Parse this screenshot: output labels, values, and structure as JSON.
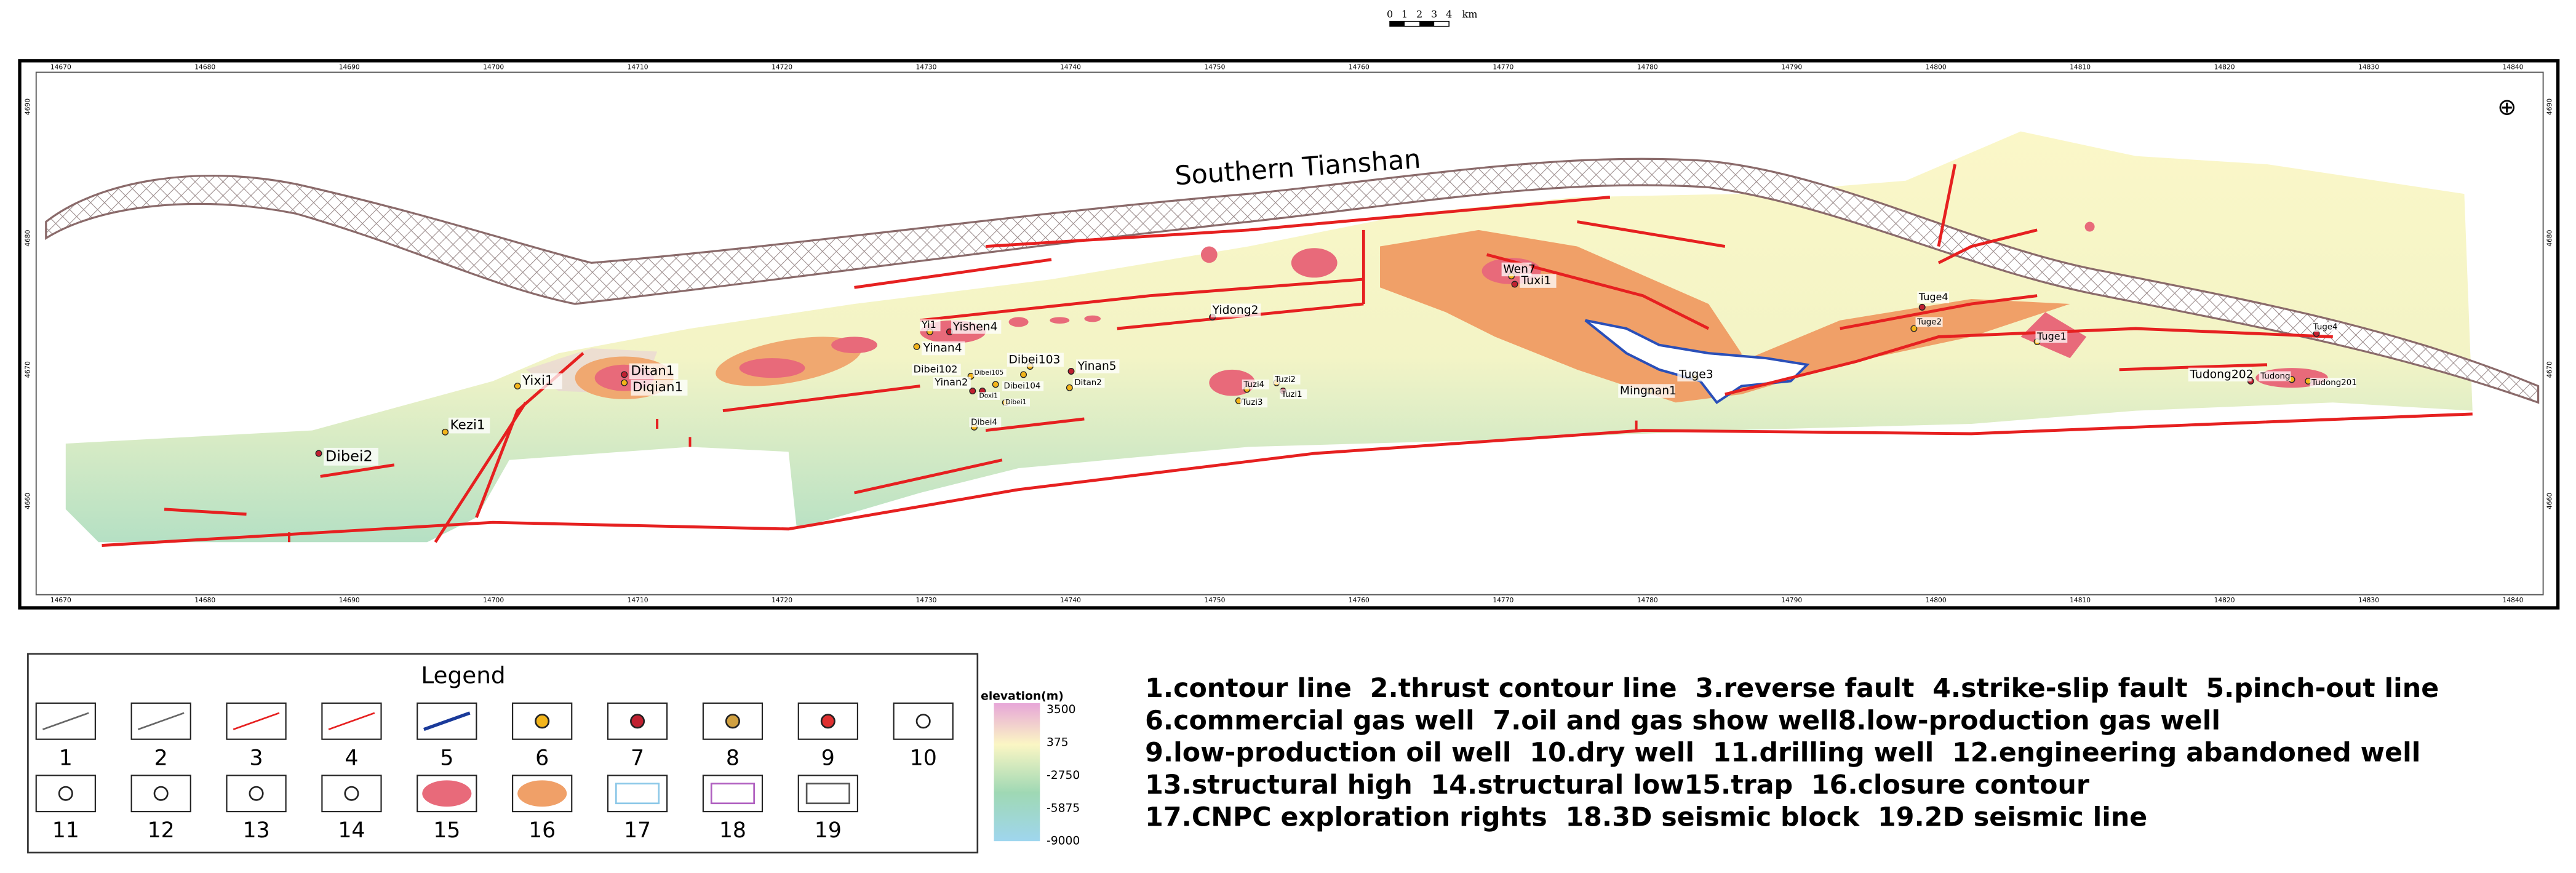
{
  "scale_bar": {
    "labels": [
      "0",
      "1",
      "2",
      "3",
      "4"
    ],
    "unit": "km"
  },
  "map": {
    "title": "Southern Tianshan",
    "x_ticks": [
      "14670",
      "14680",
      "14690",
      "14700",
      "14710",
      "14720",
      "14730",
      "14740",
      "14750",
      "14760",
      "14770",
      "14780",
      "14790",
      "14800",
      "14810",
      "14820",
      "14830",
      "14840"
    ],
    "y_ticks": [
      "4690",
      "4680",
      "4670",
      "4660"
    ],
    "wells": [
      "Dibei2",
      "Kezi1",
      "Yixi1",
      "Ditan1",
      "Diqian1",
      "Yi1",
      "Yishen4",
      "Yinan4",
      "Dibei103",
      "Yinan5",
      "Dibei102",
      "Dibei105",
      "Yinan2",
      "Dibei104",
      "Ditan2",
      "Doxi1",
      "Dibei1",
      "Dibei4",
      "Yidong2",
      "Tuzi4",
      "Tuzi2",
      "Tuzi1",
      "Tuzi3",
      "Wen7",
      "Tuxi1",
      "Tuge3",
      "Mingnan1",
      "Tuge4",
      "Tuge2",
      "Tuge1",
      "Tudong202",
      "Tudong",
      "Tudong201",
      "Tuge4"
    ]
  },
  "legend": {
    "title": "Legend",
    "numbers": [
      "1",
      "2",
      "3",
      "4",
      "5",
      "6",
      "7",
      "8",
      "9",
      "10",
      "11",
      "12",
      "13",
      "14",
      "15",
      "16",
      "17",
      "18",
      "19"
    ],
    "elevation": {
      "label": "elevation(m)",
      "ticks": [
        "3500",
        "375",
        "-2750",
        "-5875",
        "-9000"
      ]
    },
    "descriptions": [
      "1.contour line  2.thrust contour line  3.reverse fault  4.strike-slip fault  5.pinch-out line",
      "6.commercial gas well  7.oil and gas show well8.low-production gas well",
      "9.low-production oil well  10.dry well  11.drilling well  12.engineering abandoned well",
      "13.structural high  14.structural low15.trap  16.closure contour",
      "17.CNPC exploration rights  18.3D seismic block  19.2D seismic line"
    ]
  }
}
